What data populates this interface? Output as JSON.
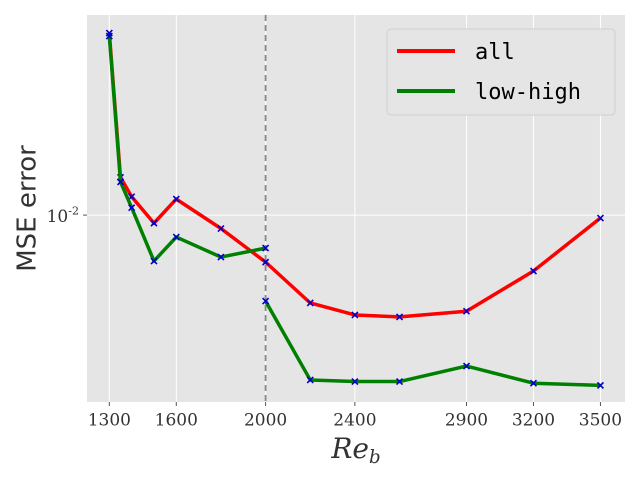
{
  "chart_data": {
    "type": "line",
    "xlabel": "Re_b",
    "ylabel": "MSE error",
    "xlim": [
      1200,
      3610
    ],
    "ylim": [
      0.00144,
      0.0796
    ],
    "xticks": [
      1300,
      1600,
      2000,
      2400,
      2900,
      3200,
      3500
    ],
    "yticks": [
      {
        "value": 0.01,
        "label": "10^-2"
      }
    ],
    "log_y": true,
    "grid": true,
    "vline": 2000,
    "legend": "upper right",
    "marker_color": "#0000cc",
    "series": [
      {
        "name": "all",
        "color": "#ff0000",
        "x": [
          1300,
          1350,
          1400,
          1500,
          1600,
          1800,
          2000,
          2200,
          2400,
          2600,
          2900,
          3200,
          3500
        ],
        "values": [
          0.066,
          0.0148,
          0.0121,
          0.0092,
          0.0118,
          0.0087,
          0.00614,
          0.00402,
          0.00355,
          0.00348,
          0.00369,
          0.0056,
          0.0097
        ]
      },
      {
        "name": "low-high",
        "color": "#008000",
        "x": [
          1300,
          1350,
          1400,
          1500,
          1600,
          1800,
          2000,
          2000,
          2200,
          2400,
          2600,
          2900,
          3200,
          3500
        ],
        "values": [
          0.064,
          0.0141,
          0.0108,
          0.00621,
          0.00796,
          0.00647,
          0.0071,
          0.0041,
          0.00181,
          0.00178,
          0.00178,
          0.00209,
          0.00175,
          0.00171
        ]
      }
    ]
  }
}
